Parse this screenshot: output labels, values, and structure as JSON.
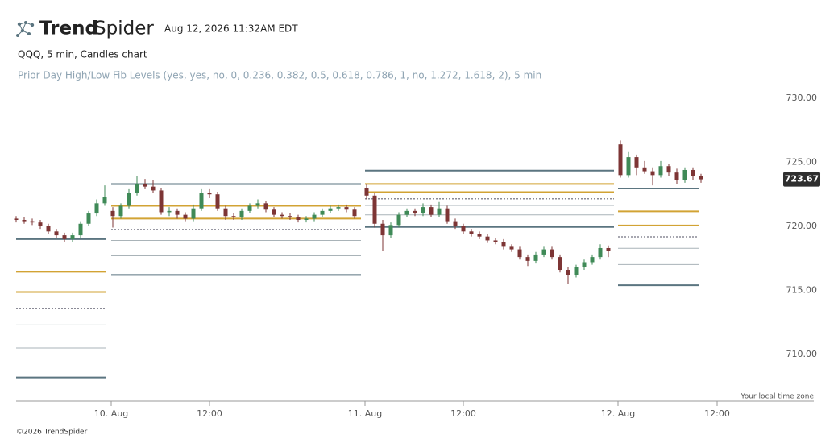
{
  "header": {
    "logo_bold": "Trend",
    "logo_light": "Spider",
    "timestamp": "Aug 12, 2026 11:32AM EDT",
    "symbol_line": "QQQ, 5 min, Candles chart",
    "indicator_line": "Prior Day High/Low Fib Levels (yes, yes, no, 0, 0.236, 0.382, 0.5, 0.618, 0.786, 1, no, 1.272, 1.618, 2), 5 min"
  },
  "chart_data": {
    "type": "candlestick",
    "x": [
      0,
      2,
      4,
      6,
      8,
      10,
      12,
      14,
      16,
      18,
      20,
      22,
      24,
      26,
      28,
      30,
      32,
      34,
      36,
      38,
      40,
      42,
      44,
      46,
      48,
      50,
      52,
      54,
      56,
      58,
      60,
      62,
      64,
      66,
      68,
      70,
      72,
      74,
      76,
      78,
      80,
      82,
      84,
      87,
      89,
      91,
      93,
      95,
      97,
      99,
      101,
      103,
      105,
      107,
      109,
      111,
      113,
      115,
      117,
      119,
      121,
      123,
      125,
      127,
      129,
      131,
      133,
      135,
      137,
      139,
      141,
      143,
      145,
      147,
      150,
      152,
      154,
      156,
      158,
      160,
      162,
      164,
      166,
      168,
      170
    ],
    "ohlc": [
      [
        720.6,
        720.8,
        720.3,
        720.5
      ],
      [
        720.5,
        720.7,
        720.2,
        720.4
      ],
      [
        720.4,
        720.6,
        720.1,
        720.3
      ],
      [
        720.3,
        720.5,
        719.8,
        720.0
      ],
      [
        720.0,
        720.2,
        719.4,
        719.6
      ],
      [
        719.6,
        719.8,
        719.1,
        719.3
      ],
      [
        719.3,
        719.5,
        718.8,
        719.0
      ],
      [
        719.0,
        719.5,
        718.8,
        719.3
      ],
      [
        719.3,
        720.4,
        719.1,
        720.2
      ],
      [
        720.2,
        721.2,
        720.0,
        721.0
      ],
      [
        721.0,
        722.1,
        720.8,
        721.8
      ],
      [
        721.8,
        723.2,
        721.6,
        722.3
      ],
      [
        721.2,
        721.5,
        719.9,
        720.8
      ],
      [
        720.8,
        721.8,
        720.6,
        721.6
      ],
      [
        721.6,
        722.9,
        721.4,
        722.6
      ],
      [
        722.6,
        723.9,
        722.4,
        723.3
      ],
      [
        723.3,
        723.7,
        722.9,
        723.1
      ],
      [
        723.1,
        723.6,
        722.6,
        722.8
      ],
      [
        722.8,
        723.0,
        720.9,
        721.1
      ],
      [
        721.1,
        721.5,
        720.8,
        721.2
      ],
      [
        721.2,
        721.4,
        720.6,
        720.9
      ],
      [
        720.9,
        721.1,
        720.4,
        720.6
      ],
      [
        720.6,
        721.7,
        720.4,
        721.4
      ],
      [
        721.4,
        722.9,
        721.2,
        722.6
      ],
      [
        722.6,
        722.9,
        722.2,
        722.5
      ],
      [
        722.5,
        722.7,
        721.2,
        721.4
      ],
      [
        721.4,
        721.6,
        720.5,
        720.8
      ],
      [
        720.8,
        721.0,
        720.5,
        720.7
      ],
      [
        720.7,
        721.4,
        720.5,
        721.2
      ],
      [
        721.2,
        721.8,
        721.0,
        721.6
      ],
      [
        721.6,
        722.1,
        721.4,
        721.8
      ],
      [
        721.8,
        722.0,
        721.1,
        721.3
      ],
      [
        721.3,
        721.5,
        720.7,
        720.9
      ],
      [
        720.9,
        721.1,
        720.6,
        720.8
      ],
      [
        720.8,
        721.0,
        720.5,
        720.7
      ],
      [
        720.7,
        720.9,
        720.3,
        720.5
      ],
      [
        720.5,
        720.8,
        720.3,
        720.6
      ],
      [
        720.6,
        721.1,
        720.4,
        720.9
      ],
      [
        720.9,
        721.4,
        720.7,
        721.2
      ],
      [
        721.2,
        721.6,
        721.0,
        721.4
      ],
      [
        721.4,
        721.7,
        721.2,
        721.5
      ],
      [
        721.5,
        721.7,
        721.1,
        721.3
      ],
      [
        721.3,
        721.5,
        720.6,
        720.8
      ],
      [
        723.0,
        723.3,
        722.1,
        722.4
      ],
      [
        722.4,
        722.6,
        719.9,
        720.2
      ],
      [
        720.2,
        720.5,
        718.1,
        719.3
      ],
      [
        719.3,
        720.3,
        719.1,
        720.1
      ],
      [
        720.1,
        721.1,
        719.9,
        720.9
      ],
      [
        720.9,
        721.4,
        720.7,
        721.2
      ],
      [
        721.2,
        721.4,
        720.8,
        721.0
      ],
      [
        721.0,
        721.8,
        720.8,
        721.5
      ],
      [
        721.5,
        721.7,
        720.7,
        720.9
      ],
      [
        720.9,
        721.9,
        720.7,
        721.4
      ],
      [
        721.4,
        721.6,
        720.2,
        720.4
      ],
      [
        720.4,
        720.6,
        719.8,
        720.0
      ],
      [
        720.0,
        720.2,
        719.4,
        719.6
      ],
      [
        719.6,
        719.8,
        719.2,
        719.4
      ],
      [
        719.4,
        719.6,
        719.0,
        719.2
      ],
      [
        719.2,
        719.4,
        718.7,
        718.9
      ],
      [
        718.9,
        719.1,
        718.6,
        718.8
      ],
      [
        718.8,
        719.0,
        718.2,
        718.4
      ],
      [
        718.4,
        718.6,
        718.0,
        718.2
      ],
      [
        718.2,
        718.4,
        717.4,
        717.6
      ],
      [
        717.6,
        717.8,
        716.9,
        717.3
      ],
      [
        717.3,
        718.0,
        717.1,
        717.8
      ],
      [
        717.8,
        718.4,
        717.6,
        718.2
      ],
      [
        718.2,
        718.4,
        717.4,
        717.6
      ],
      [
        717.6,
        717.8,
        716.4,
        716.6
      ],
      [
        716.6,
        716.8,
        715.5,
        716.2
      ],
      [
        716.2,
        717.0,
        716.0,
        716.8
      ],
      [
        716.8,
        717.4,
        716.6,
        717.2
      ],
      [
        717.2,
        717.8,
        717.0,
        717.6
      ],
      [
        717.6,
        718.6,
        717.4,
        718.3
      ],
      [
        718.3,
        718.5,
        717.6,
        718.1
      ],
      [
        726.4,
        726.7,
        723.8,
        724.0
      ],
      [
        724.0,
        725.8,
        723.8,
        725.4
      ],
      [
        725.4,
        725.6,
        724.0,
        724.6
      ],
      [
        724.6,
        725.1,
        724.1,
        724.3
      ],
      [
        724.3,
        724.6,
        723.2,
        724.0
      ],
      [
        724.0,
        725.1,
        723.8,
        724.7
      ],
      [
        724.7,
        724.9,
        723.9,
        724.2
      ],
      [
        724.2,
        724.5,
        723.3,
        723.6
      ],
      [
        723.6,
        724.6,
        723.4,
        724.4
      ],
      [
        724.4,
        724.6,
        723.6,
        723.9
      ],
      [
        723.9,
        724.1,
        723.4,
        723.67
      ]
    ],
    "up_color": "#3f8a57",
    "down_color": "#7d3535",
    "fib_segments": [
      {
        "x": [
          0,
          22.4
        ],
        "levels": [
          719.0,
          716.45,
          714.87,
          713.6,
          712.3,
          710.5,
          708.2
        ]
      },
      {
        "x": [
          23.6,
          85.6
        ],
        "levels": [
          723.3,
          721.6,
          720.6,
          719.75,
          718.9,
          717.7,
          716.2
        ]
      },
      {
        "x": [
          86.6,
          148.4
        ],
        "levels": [
          724.35,
          723.31,
          722.67,
          722.15,
          721.63,
          720.89,
          719.95
        ]
      },
      {
        "x": [
          149.4,
          169.6
        ],
        "levels": [
          722.95,
          721.17,
          720.07,
          719.18,
          718.28,
          717.02,
          715.4
        ]
      }
    ],
    "level_styles": [
      "base",
      "gold",
      "gold",
      "dotted",
      "thin",
      "thin",
      "base"
    ],
    "level_colors": {
      "base": "#5b7580",
      "gold": "#d2a334",
      "dotted": "#8a8a96",
      "thin": "#a9b3b8"
    },
    "xlim": [
      0,
      182
    ],
    "ylim": [
      706.35,
      731.38
    ],
    "xticks": [
      {
        "value": 23.6,
        "label": "10. Aug"
      },
      {
        "value": 48,
        "label": "12:00"
      },
      {
        "value": 86.6,
        "label": "11. Aug"
      },
      {
        "value": 111,
        "label": "12:00"
      },
      {
        "value": 149.4,
        "label": "12. Aug"
      },
      {
        "value": 174,
        "label": "12:00"
      }
    ],
    "yticks": [
      {
        "value": 710,
        "label": "710.00"
      },
      {
        "value": 715,
        "label": "715.00"
      },
      {
        "value": 720,
        "label": "720.00"
      },
      {
        "value": 725,
        "label": "725.00"
      },
      {
        "value": 730,
        "label": "730.00"
      }
    ],
    "timezone_note": "Your local time zone"
  },
  "footer": {
    "copyright": "©2026 TrendSpider"
  }
}
